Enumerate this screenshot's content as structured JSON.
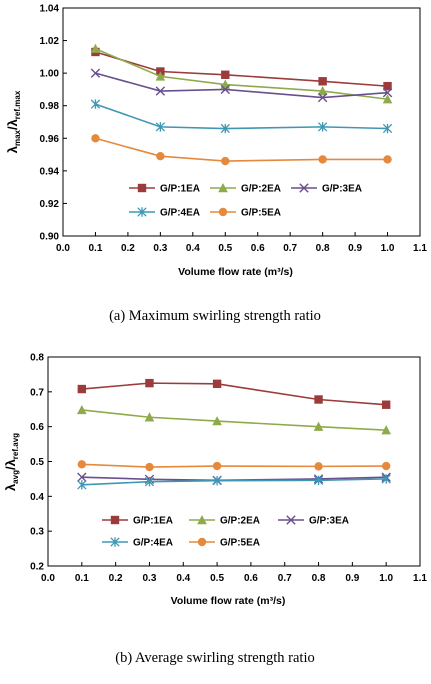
{
  "chart_data": [
    {
      "type": "line",
      "caption": "(a)  Maximum  swirling  strength  ratio",
      "xlabel": "Volume flow rate (m³/s)",
      "ylabel_main": "λ",
      "ylabel_sub1": "max",
      "ylabel_mid": "/λ",
      "ylabel_sub2": "ref.max",
      "xlim": [
        0.0,
        1.1
      ],
      "ylim": [
        0.9,
        1.04
      ],
      "xticks": [
        0.0,
        0.1,
        0.2,
        0.3,
        0.4,
        0.5,
        0.6,
        0.7,
        0.8,
        0.9,
        1.0,
        1.1
      ],
      "xtick_labels": [
        "0.0",
        "0.1",
        "0.2",
        "0.3",
        "0.4",
        "0.5",
        "0.6",
        "0.7",
        "0.8",
        "0.9",
        "1.0",
        "1.1"
      ],
      "yticks": [
        0.9,
        0.92,
        0.94,
        0.96,
        0.98,
        1.0,
        1.02,
        1.04
      ],
      "ytick_labels": [
        "0.90",
        "0.92",
        "0.94",
        "0.96",
        "0.98",
        "1.00",
        "1.02",
        "1.04"
      ],
      "grid": false,
      "legend_position": "bottom",
      "x": [
        0.1,
        0.3,
        0.5,
        0.8,
        1.0
      ],
      "series": [
        {
          "name": "G/P:1EA",
          "color": "#9b3b3b",
          "marker": "square",
          "values": [
            1.013,
            1.001,
            0.999,
            0.995,
            0.992
          ]
        },
        {
          "name": "G/P:2EA",
          "color": "#8faa4a",
          "marker": "triangle",
          "values": [
            1.015,
            0.998,
            0.993,
            0.989,
            0.984
          ]
        },
        {
          "name": "G/P:3EA",
          "color": "#6a4f8f",
          "marker": "x",
          "values": [
            1.0,
            0.989,
            0.99,
            0.985,
            0.988
          ]
        },
        {
          "name": "G/P:4EA",
          "color": "#3f97b5",
          "marker": "star",
          "values": [
            0.981,
            0.967,
            0.966,
            0.967,
            0.966
          ]
        },
        {
          "name": "G/P:5EA",
          "color": "#e58a3c",
          "marker": "circle",
          "values": [
            0.96,
            0.949,
            0.946,
            0.947,
            0.947
          ]
        }
      ]
    },
    {
      "type": "line",
      "caption": "(b)  Average  swirling  strength  ratio",
      "xlabel": "Volume flow rate (m³/s)",
      "ylabel_main": "λ",
      "ylabel_sub1": "avg",
      "ylabel_mid": "/λ",
      "ylabel_sub2": "ref.avg",
      "xlim": [
        0.0,
        1.1
      ],
      "ylim": [
        0.2,
        0.8
      ],
      "xticks": [
        0.0,
        0.1,
        0.2,
        0.3,
        0.4,
        0.5,
        0.6,
        0.7,
        0.8,
        0.9,
        1.0,
        1.1
      ],
      "xtick_labels": [
        "0.0",
        "0.1",
        "0.2",
        "0.3",
        "0.4",
        "0.5",
        "0.6",
        "0.7",
        "0.8",
        "0.9",
        "1.0",
        "1.1"
      ],
      "yticks": [
        0.2,
        0.3,
        0.4,
        0.5,
        0.6,
        0.7,
        0.8
      ],
      "ytick_labels": [
        "0.2",
        "0.3",
        "0.4",
        "0.5",
        "0.6",
        "0.7",
        "0.8"
      ],
      "grid": false,
      "legend_position": "bottom",
      "x": [
        0.1,
        0.3,
        0.5,
        0.8,
        1.0
      ],
      "series": [
        {
          "name": "G/P:1EA",
          "color": "#9b3b3b",
          "marker": "square",
          "values": [
            0.708,
            0.725,
            0.723,
            0.678,
            0.663
          ]
        },
        {
          "name": "G/P:2EA",
          "color": "#8faa4a",
          "marker": "triangle",
          "values": [
            0.648,
            0.627,
            0.616,
            0.6,
            0.59
          ]
        },
        {
          "name": "G/P:3EA",
          "color": "#6a4f8f",
          "marker": "x",
          "values": [
            0.455,
            0.449,
            0.446,
            0.45,
            0.455
          ]
        },
        {
          "name": "G/P:4EA",
          "color": "#3f97b5",
          "marker": "star",
          "values": [
            0.433,
            0.442,
            0.445,
            0.446,
            0.45
          ]
        },
        {
          "name": "G/P:5EA",
          "color": "#e58a3c",
          "marker": "circle",
          "values": [
            0.492,
            0.484,
            0.487,
            0.486,
            0.487
          ]
        }
      ]
    }
  ]
}
